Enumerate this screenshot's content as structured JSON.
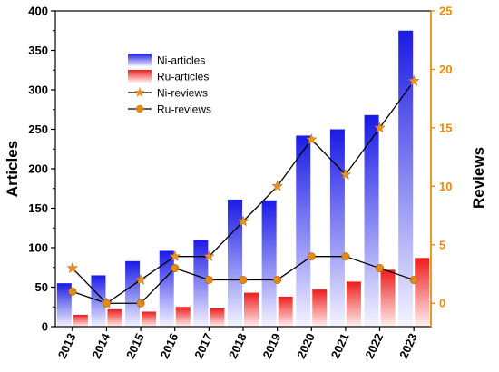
{
  "chart_data": {
    "type": "bar+line",
    "categories": [
      "2013",
      "2014",
      "2015",
      "2016",
      "2017",
      "2018",
      "2019",
      "2020",
      "2021",
      "2022",
      "2023"
    ],
    "bar_series": [
      {
        "name": "Ni-articles",
        "axis": "left",
        "values": [
          55,
          65,
          83,
          96,
          110,
          161,
          160,
          242,
          250,
          268,
          375
        ]
      },
      {
        "name": "Ru-articles",
        "axis": "left",
        "values": [
          15,
          22,
          19,
          25,
          23,
          43,
          38,
          47,
          57,
          72,
          87
        ]
      }
    ],
    "line_series": [
      {
        "name": "Ni-reviews",
        "axis": "right",
        "marker": "star",
        "values": [
          3,
          0,
          2,
          4,
          4,
          7,
          10,
          14,
          11,
          15,
          19
        ]
      },
      {
        "name": "Ru-reviews",
        "axis": "right",
        "marker": "circle",
        "values": [
          1,
          0,
          0,
          3,
          2,
          2,
          2,
          4,
          4,
          3,
          2
        ]
      }
    ],
    "ylabel": "Articles",
    "y2label": "Reviews",
    "ylim": [
      0,
      400
    ],
    "y2lim": [
      -2,
      25
    ],
    "yticks": [
      0,
      50,
      100,
      150,
      200,
      250,
      300,
      350,
      400
    ],
    "y2ticks": [
      0,
      5,
      10,
      15,
      20,
      25
    ],
    "legend_position": "top-left",
    "grid": false,
    "colors": {
      "ni_bar_top": "#1a1ae6",
      "ni_bar_bottom": "#f4f4ff",
      "ru_bar_top": "#ee1c1c",
      "ru_bar_bottom": "#fff0f0",
      "ni_line_marker": "#e8922a",
      "ru_line_marker": "#e08a1a",
      "right_axis": "#f08a00",
      "line": "#000000"
    }
  }
}
